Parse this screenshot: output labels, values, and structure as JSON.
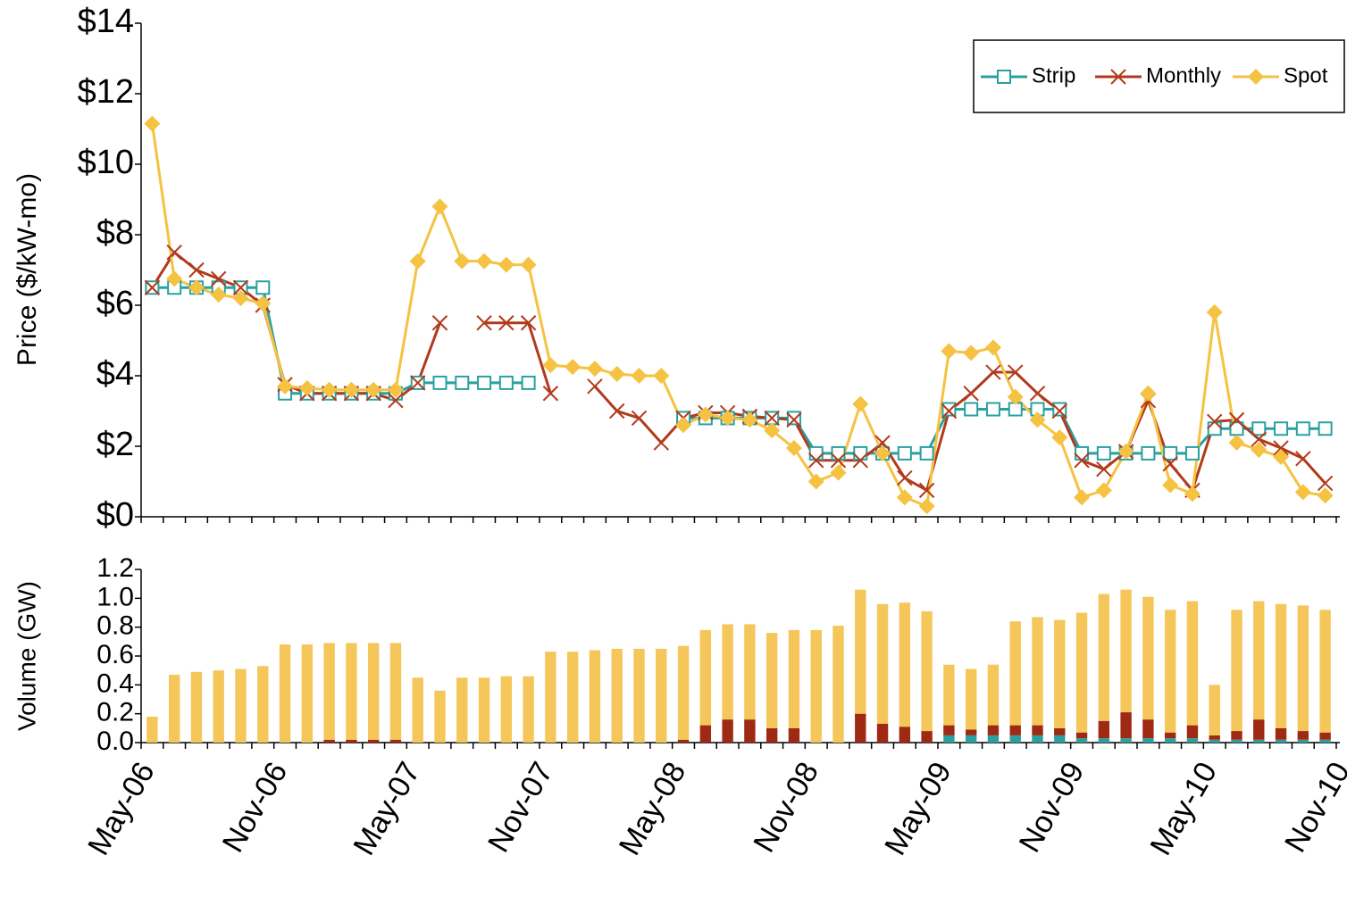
{
  "chart_data": [
    {
      "type": "line",
      "ylabel": "Price ($/kW-mo)",
      "ylim": [
        0,
        14
      ],
      "yticks": [
        {
          "value": 0,
          "label": "$0"
        },
        {
          "value": 2,
          "label": "$2"
        },
        {
          "value": 4,
          "label": "$4"
        },
        {
          "value": 6,
          "label": "$6"
        },
        {
          "value": 8,
          "label": "$8"
        },
        {
          "value": 10,
          "label": "$10"
        },
        {
          "value": 12,
          "label": "$12"
        },
        {
          "value": 14,
          "label": "$14"
        }
      ],
      "legend": "top-right",
      "series": [
        {
          "name": "Strip",
          "color": "#2aa0a0",
          "marker": "square",
          "values": [
            6.5,
            6.5,
            6.5,
            6.5,
            6.5,
            6.5,
            3.5,
            3.5,
            3.5,
            3.5,
            3.5,
            3.5,
            3.8,
            3.8,
            3.8,
            3.8,
            3.8,
            3.8,
            null,
            null,
            null,
            null,
            null,
            null,
            2.8,
            2.8,
            2.8,
            2.8,
            2.8,
            2.8,
            1.8,
            1.8,
            1.8,
            1.8,
            1.8,
            1.8,
            3.05,
            3.05,
            3.05,
            3.05,
            3.05,
            3.05,
            1.8,
            1.8,
            1.8,
            1.8,
            1.8,
            1.8,
            2.5,
            2.5,
            2.5,
            2.5,
            2.5,
            2.5,
            null
          ]
        },
        {
          "name": "Monthly",
          "color": "#b23a1c",
          "marker": "x",
          "values": [
            6.5,
            7.5,
            7.0,
            6.75,
            6.5,
            6.0,
            3.75,
            3.5,
            3.5,
            3.5,
            3.5,
            3.3,
            3.8,
            5.5,
            null,
            5.5,
            5.5,
            5.5,
            3.5,
            null,
            3.7,
            3.0,
            2.8,
            2.1,
            2.8,
            2.95,
            2.95,
            2.85,
            2.8,
            2.75,
            1.6,
            1.6,
            1.6,
            2.1,
            1.1,
            0.75,
            3.0,
            3.5,
            4.1,
            4.1,
            3.5,
            3.0,
            1.6,
            1.35,
            1.85,
            3.3,
            1.5,
            0.75,
            2.7,
            2.75,
            2.2,
            1.95,
            1.65,
            0.95,
            null
          ]
        },
        {
          "name": "Spot",
          "color": "#f5c242",
          "marker": "diamond",
          "values": [
            11.15,
            6.75,
            6.5,
            6.3,
            6.2,
            6.05,
            3.7,
            3.65,
            3.6,
            3.6,
            3.6,
            3.6,
            7.25,
            8.8,
            7.25,
            7.25,
            7.15,
            7.15,
            4.3,
            4.25,
            4.2,
            4.05,
            4.0,
            4.0,
            2.6,
            2.9,
            2.8,
            2.75,
            2.45,
            1.95,
            1.0,
            1.25,
            3.2,
            1.8,
            0.55,
            0.3,
            4.7,
            4.65,
            4.8,
            3.4,
            2.75,
            2.25,
            0.55,
            0.75,
            1.85,
            3.5,
            0.9,
            0.65,
            5.8,
            2.1,
            1.9,
            1.7,
            0.7,
            0.6,
            null
          ]
        }
      ]
    },
    {
      "type": "bar",
      "stacked": true,
      "ylabel": "Volume (GW)",
      "categories": [
        "May-06",
        null,
        null,
        null,
        null,
        null,
        "Nov-06",
        null,
        null,
        null,
        null,
        null,
        "May-07",
        null,
        null,
        null,
        null,
        null,
        "Nov-07",
        null,
        null,
        null,
        null,
        null,
        "May-08",
        null,
        null,
        null,
        null,
        null,
        "Nov-08",
        null,
        null,
        null,
        null,
        null,
        "May-09",
        null,
        null,
        null,
        null,
        null,
        "Nov-09",
        null,
        null,
        null,
        null,
        null,
        "May-10",
        null,
        null,
        null,
        null,
        null,
        "Nov-10"
      ],
      "ylim": [
        0,
        1.2
      ],
      "yticks": [
        {
          "value": 0,
          "label": "0.0"
        },
        0.2,
        0.4,
        0.6,
        0.8,
        {
          "value": 1,
          "label": "1.0"
        },
        1.2
      ],
      "series": [
        {
          "color": "#2aa0a0",
          "values": [
            0,
            0,
            0,
            0,
            0,
            0,
            0,
            0,
            0,
            0,
            0,
            0,
            0,
            0,
            0,
            0,
            0,
            0,
            0,
            0,
            0,
            0,
            0,
            0,
            0,
            0,
            0,
            0,
            0,
            0,
            0,
            0,
            0,
            0,
            0,
            0,
            0.05,
            0.05,
            0.05,
            0.05,
            0.05,
            0.05,
            0.03,
            0.03,
            0.03,
            0.03,
            0.03,
            0.03,
            0.02,
            0.02,
            0.02,
            0.02,
            0.02,
            0.02,
            null
          ]
        },
        {
          "color": "#9e2a14",
          "values": [
            0,
            0,
            0,
            0,
            0,
            0,
            0,
            0,
            0.02,
            0.02,
            0.02,
            0.02,
            0,
            0,
            0,
            0,
            0,
            0,
            0,
            0,
            0,
            0,
            0,
            0,
            0.02,
            0.12,
            0.16,
            0.16,
            0.1,
            0.1,
            0,
            0,
            0.2,
            0.13,
            0.11,
            0.08,
            0.07,
            0.04,
            0.07,
            0.07,
            0.07,
            0.05,
            0.04,
            0.12,
            0.18,
            0.13,
            0.04,
            0.09,
            0.03,
            0.06,
            0.14,
            0.08,
            0.06,
            0.05,
            null
          ]
        },
        {
          "color": "#f5c659",
          "values": [
            0.18,
            0.47,
            0.49,
            0.5,
            0.51,
            0.53,
            0.68,
            0.68,
            0.67,
            0.67,
            0.67,
            0.67,
            0.45,
            0.36,
            0.45,
            0.45,
            0.46,
            0.46,
            0.63,
            0.63,
            0.64,
            0.65,
            0.65,
            0.65,
            0.65,
            0.66,
            0.66,
            0.66,
            0.66,
            0.68,
            0.78,
            0.81,
            0.86,
            0.83,
            0.86,
            0.83,
            0.42,
            0.42,
            0.42,
            0.72,
            0.75,
            0.75,
            0.83,
            0.88,
            0.85,
            0.85,
            0.85,
            0.86,
            0.35,
            0.84,
            0.82,
            0.86,
            0.87,
            0.85,
            null
          ]
        }
      ]
    }
  ]
}
